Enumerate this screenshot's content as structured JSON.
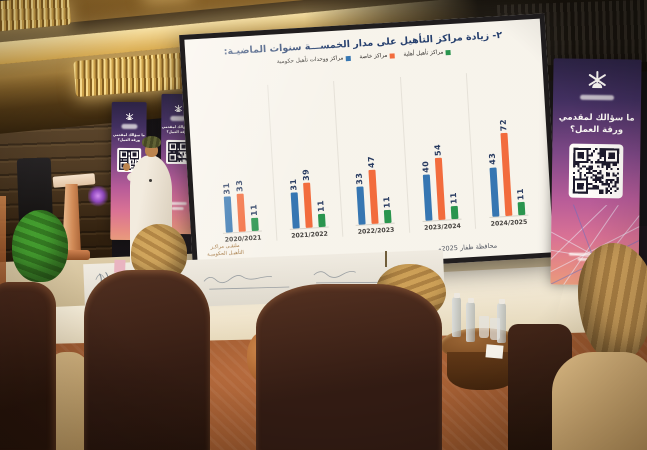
{
  "scene": {
    "type": "photograph",
    "setting": "hotel ballroom presentation with speaker on stage, projected slide and seated audience"
  },
  "slide": {
    "title": "٢- زيادة مراكز التأهيل على مدار الخمســـة سنوات الماضيـة:",
    "legend": [
      {
        "label": "مراكز تأهيل أهلية",
        "color": "#21944e"
      },
      {
        "label": "مراكز خاصة",
        "color": "#f2693c"
      },
      {
        "label": "مراكز ووحدات تأهيل حكومية",
        "color": "#2e74b5"
      }
    ],
    "footer_logo_line1": "ملتقـى مراكـز",
    "footer_logo_line2": "التأهيـل الحكوميـة",
    "footer_right": "محافظة ظفار 2025م"
  },
  "chart_data": {
    "type": "bar",
    "title": "زيادة مراكز التأهيل على مدار الخمسة سنوات الماضية",
    "categories": [
      "2020/2021",
      "2021/2022",
      "2022/2023",
      "2023/2024",
      "2024/2025"
    ],
    "series": [
      {
        "name": "مراكز ووحدات تأهيل حكومية",
        "color": "#2e74b5",
        "values": [
          31,
          31,
          33,
          40,
          43
        ]
      },
      {
        "name": "مراكز خاصة",
        "color": "#f2693c",
        "values": [
          33,
          39,
          47,
          54,
          72
        ]
      },
      {
        "name": "مراكز تأهيل أهلية",
        "color": "#21944e",
        "values": [
          11,
          11,
          11,
          11,
          11
        ]
      }
    ],
    "xlabel": "",
    "ylabel": "",
    "ylim": [
      0,
      80
    ],
    "grid": "faint vertical separators between year groups",
    "legend_position": "top",
    "value_labels": "rotated 90° above each bar"
  },
  "banners": {
    "question_heading_line1": "ما سؤالك لمقدمي",
    "question_heading_line2": "ورقة العمل؟"
  },
  "icons": {
    "oman_emblem": "khanjar dagger with crossed swords",
    "qr_code": "▦"
  },
  "colors": {
    "bar_blue": "#2e74b5",
    "bar_orange": "#f2693c",
    "bar_green": "#21944e",
    "banner_gradient_top": "#241d44",
    "banner_gradient_bottom": "#e89a7e",
    "slide_background": "#f7f6f1",
    "ceiling_gold": "#d8ab50"
  }
}
